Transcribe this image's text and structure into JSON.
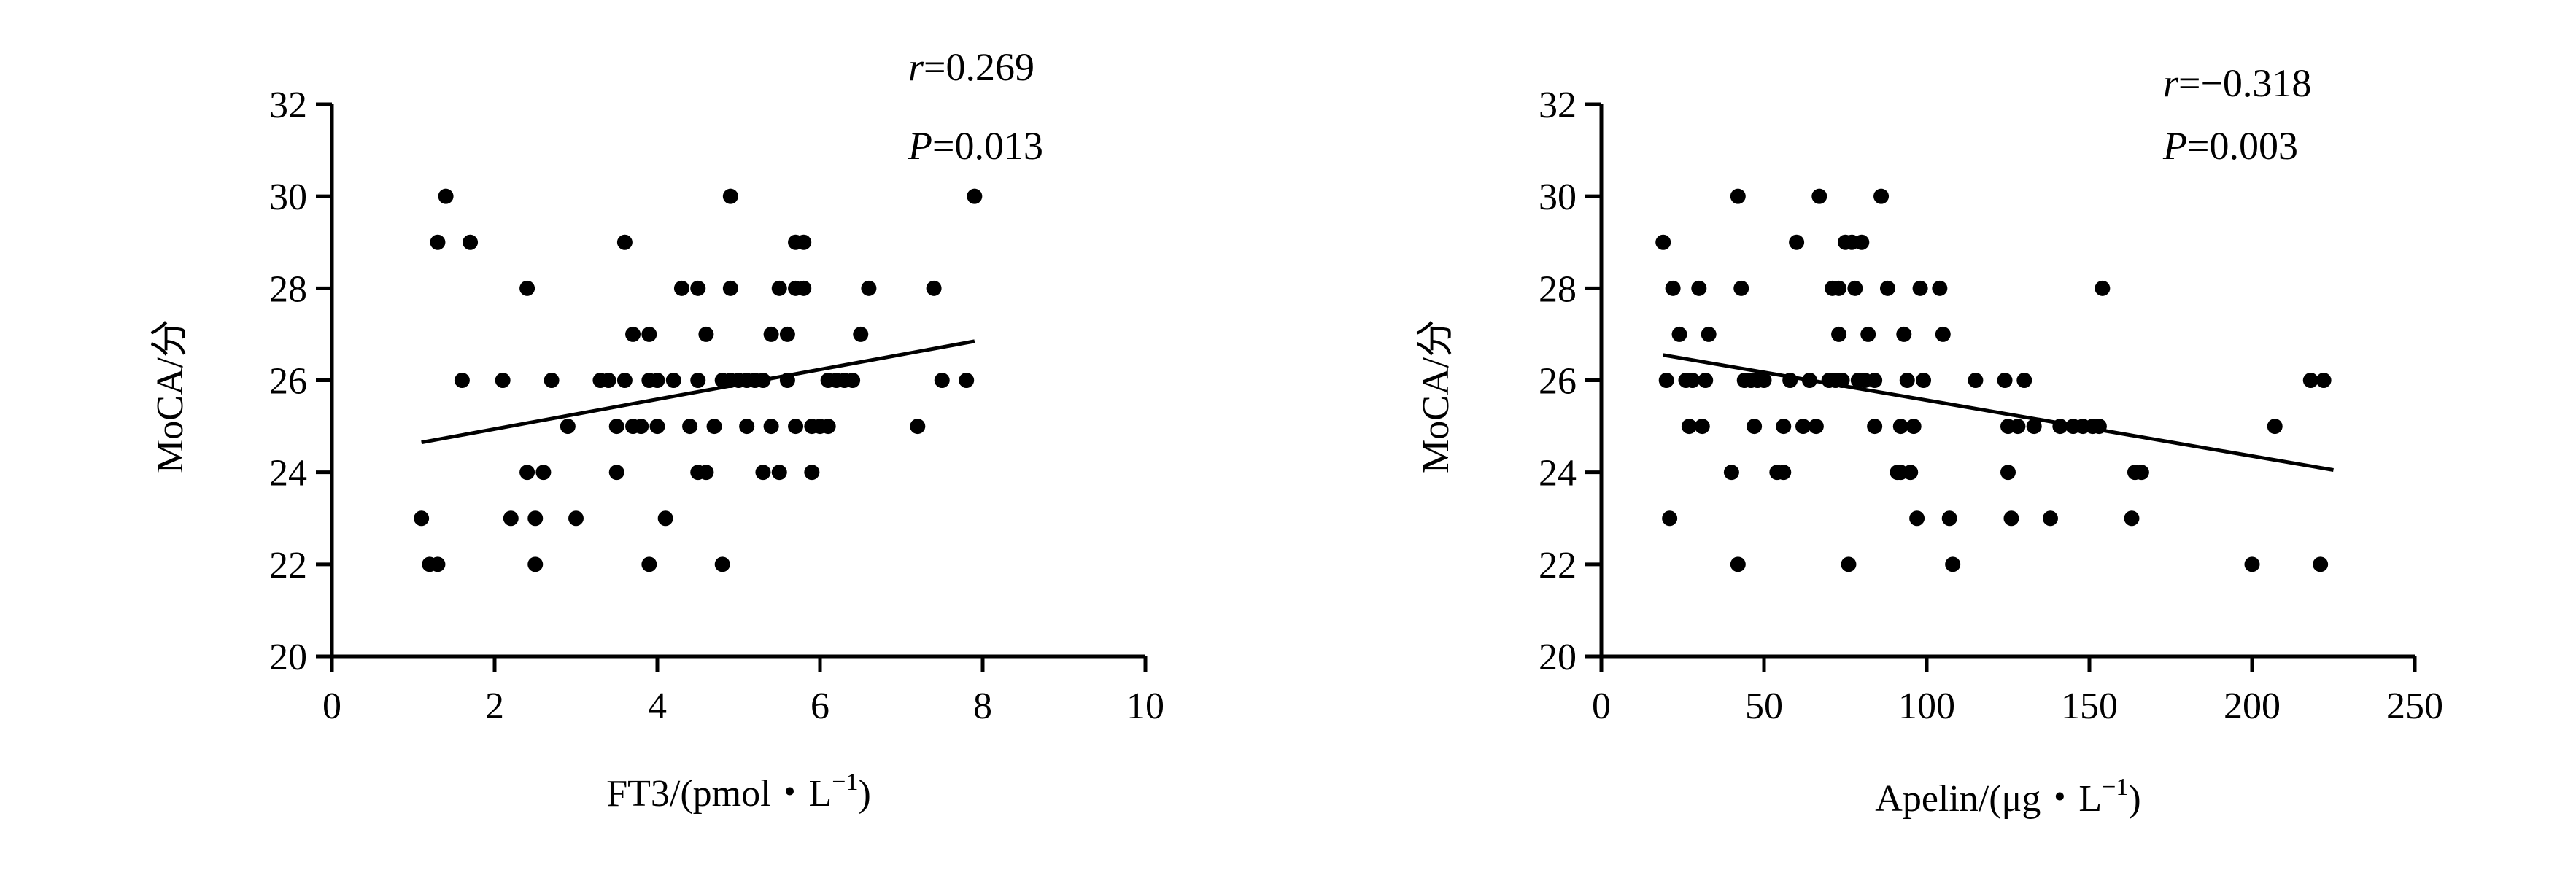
{
  "chart_data": [
    {
      "type": "scatter",
      "xlabel_main": "FT3/(pmol・L",
      "xlabel_sup": "−1",
      "xlabel_tail": ")",
      "ylabel": "MoCA/分",
      "xlim": [
        0,
        10
      ],
      "ylim": [
        20,
        32
      ],
      "xticks": [
        0,
        2,
        4,
        6,
        8,
        10
      ],
      "yticks": [
        20,
        22,
        24,
        26,
        28,
        30,
        32
      ],
      "annotations": [
        {
          "var": "r",
          "value": "=0.269"
        },
        {
          "var": "P",
          "value": "=0.013"
        }
      ],
      "trendline": {
        "x": [
          1.1,
          7.9
        ],
        "y": [
          24.65,
          26.85
        ]
      },
      "points": [
        [
          1.1,
          23
        ],
        [
          1.2,
          22
        ],
        [
          1.3,
          22
        ],
        [
          1.3,
          29
        ],
        [
          1.4,
          30
        ],
        [
          1.6,
          26
        ],
        [
          1.7,
          29
        ],
        [
          2.1,
          26
        ],
        [
          2.2,
          23
        ],
        [
          2.4,
          24
        ],
        [
          2.4,
          28
        ],
        [
          2.5,
          23
        ],
        [
          2.5,
          22
        ],
        [
          2.6,
          24
        ],
        [
          2.7,
          26
        ],
        [
          2.9,
          25
        ],
        [
          3.0,
          23
        ],
        [
          3.3,
          26
        ],
        [
          3.4,
          26
        ],
        [
          3.5,
          24
        ],
        [
          3.5,
          25
        ],
        [
          3.6,
          29
        ],
        [
          3.6,
          26
        ],
        [
          3.7,
          25
        ],
        [
          3.7,
          27
        ],
        [
          3.8,
          25
        ],
        [
          3.9,
          22
        ],
        [
          3.9,
          26
        ],
        [
          3.9,
          27
        ],
        [
          4.0,
          25
        ],
        [
          4.0,
          26
        ],
        [
          4.1,
          23
        ],
        [
          4.2,
          26
        ],
        [
          4.3,
          28
        ],
        [
          4.4,
          25
        ],
        [
          4.5,
          28
        ],
        [
          4.5,
          24
        ],
        [
          4.5,
          26
        ],
        [
          4.6,
          27
        ],
        [
          4.6,
          24
        ],
        [
          4.7,
          25
        ],
        [
          4.8,
          22
        ],
        [
          4.8,
          26
        ],
        [
          4.9,
          28
        ],
        [
          4.9,
          30
        ],
        [
          4.9,
          26
        ],
        [
          5.0,
          26
        ],
        [
          5.1,
          25
        ],
        [
          5.1,
          26
        ],
        [
          5.2,
          26
        ],
        [
          5.3,
          24
        ],
        [
          5.3,
          26
        ],
        [
          5.4,
          27
        ],
        [
          5.4,
          25
        ],
        [
          5.5,
          28
        ],
        [
          5.5,
          24
        ],
        [
          5.6,
          27
        ],
        [
          5.6,
          26
        ],
        [
          5.7,
          25
        ],
        [
          5.7,
          29
        ],
        [
          5.7,
          28
        ],
        [
          5.8,
          29
        ],
        [
          5.8,
          28
        ],
        [
          5.9,
          25
        ],
        [
          5.9,
          24
        ],
        [
          6.0,
          25
        ],
        [
          6.1,
          26
        ],
        [
          6.1,
          25
        ],
        [
          6.2,
          26
        ],
        [
          6.3,
          26
        ],
        [
          6.4,
          26
        ],
        [
          6.5,
          27
        ],
        [
          6.6,
          28
        ],
        [
          7.2,
          25
        ],
        [
          7.4,
          28
        ],
        [
          7.5,
          26
        ],
        [
          7.8,
          26
        ],
        [
          7.9,
          30
        ]
      ]
    },
    {
      "type": "scatter",
      "xlabel_main": "Apelin/(μg・L",
      "xlabel_sup": "−1",
      "xlabel_tail": ")",
      "ylabel": "MoCA/分",
      "xlim": [
        0,
        250
      ],
      "ylim": [
        20,
        32
      ],
      "xticks": [
        0,
        50,
        100,
        150,
        200,
        250
      ],
      "yticks": [
        20,
        22,
        24,
        26,
        28,
        30,
        32
      ],
      "annotations": [
        {
          "var": "r",
          "value": "=−0.318"
        },
        {
          "var": "P",
          "value": "=0.003"
        }
      ],
      "trendline": {
        "x": [
          19,
          225
        ],
        "y": [
          26.55,
          24.05
        ]
      },
      "points": [
        [
          19,
          29
        ],
        [
          20,
          26
        ],
        [
          21,
          23
        ],
        [
          22,
          28
        ],
        [
          24,
          27
        ],
        [
          26,
          26
        ],
        [
          27,
          25
        ],
        [
          28,
          26
        ],
        [
          30,
          28
        ],
        [
          31,
          25
        ],
        [
          32,
          26
        ],
        [
          33,
          27
        ],
        [
          40,
          24
        ],
        [
          42,
          30
        ],
        [
          42,
          22
        ],
        [
          43,
          28
        ],
        [
          44,
          26
        ],
        [
          46,
          26
        ],
        [
          47,
          25
        ],
        [
          48,
          26
        ],
        [
          50,
          26
        ],
        [
          54,
          24
        ],
        [
          56,
          24
        ],
        [
          56,
          25
        ],
        [
          58,
          26
        ],
        [
          60,
          29
        ],
        [
          62,
          25
        ],
        [
          64,
          26
        ],
        [
          66,
          25
        ],
        [
          67,
          30
        ],
        [
          70,
          26
        ],
        [
          71,
          28
        ],
        [
          72,
          26
        ],
        [
          73,
          27
        ],
        [
          73,
          28
        ],
        [
          74,
          26
        ],
        [
          75,
          29
        ],
        [
          76,
          22
        ],
        [
          77,
          29
        ],
        [
          78,
          28
        ],
        [
          79,
          26
        ],
        [
          80,
          29
        ],
        [
          81,
          26
        ],
        [
          82,
          27
        ],
        [
          84,
          25
        ],
        [
          84,
          26
        ],
        [
          86,
          30
        ],
        [
          88,
          28
        ],
        [
          91,
          24
        ],
        [
          92,
          24
        ],
        [
          92,
          25
        ],
        [
          93,
          27
        ],
        [
          94,
          26
        ],
        [
          95,
          24
        ],
        [
          96,
          25
        ],
        [
          97,
          23
        ],
        [
          98,
          28
        ],
        [
          99,
          26
        ],
        [
          104,
          28
        ],
        [
          105,
          27
        ],
        [
          107,
          23
        ],
        [
          108,
          22
        ],
        [
          115,
          26
        ],
        [
          124,
          26
        ],
        [
          125,
          25
        ],
        [
          125,
          24
        ],
        [
          126,
          23
        ],
        [
          128,
          25
        ],
        [
          130,
          26
        ],
        [
          133,
          25
        ],
        [
          138,
          23
        ],
        [
          141,
          25
        ],
        [
          145,
          25
        ],
        [
          148,
          25
        ],
        [
          151,
          25
        ],
        [
          153,
          25
        ],
        [
          154,
          28
        ],
        [
          163,
          23
        ],
        [
          164,
          24
        ],
        [
          166,
          24
        ],
        [
          200,
          22
        ],
        [
          207,
          25
        ],
        [
          218,
          26
        ],
        [
          221,
          22
        ],
        [
          222,
          26
        ]
      ]
    }
  ]
}
